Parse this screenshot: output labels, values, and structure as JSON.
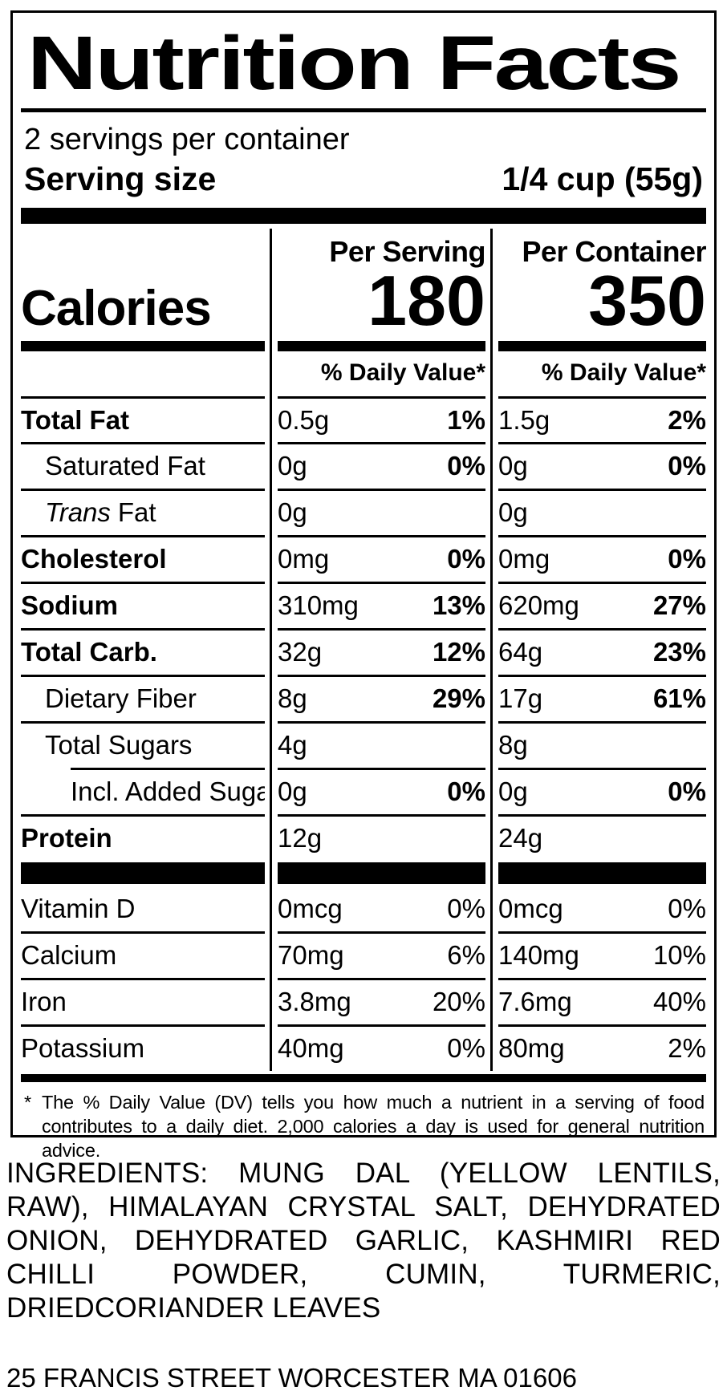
{
  "colors": {
    "ink": "#000000",
    "paper": "#ffffff"
  },
  "label": {
    "title": "Nutrition Facts",
    "servings_per_container": "2 servings per container",
    "serving_size": {
      "label": "Serving size",
      "value": "1/4 cup (55g)"
    },
    "columns": {
      "per_serving": "Per Serving",
      "per_container": "Per Container"
    },
    "calories": {
      "label": "Calories",
      "per_serving": "180",
      "per_container": "350"
    },
    "daily_value_header": "% Daily Value*",
    "nutrients": [
      {
        "name": "Total Fat",
        "ps_amt": "0.5g",
        "ps_dv": "1%",
        "pc_amt": "1.5g",
        "pc_dv": "2%"
      },
      {
        "name": "Saturated Fat",
        "ps_amt": "0g",
        "ps_dv": "0%",
        "pc_amt": "0g",
        "pc_dv": "0%"
      },
      {
        "name_italic": "Trans",
        "name": "Fat",
        "ps_amt": "0g",
        "pc_amt": "0g"
      },
      {
        "name": "Cholesterol",
        "ps_amt": "0mg",
        "ps_dv": "0%",
        "pc_amt": "0mg",
        "pc_dv": "0%"
      },
      {
        "name": "Sodium",
        "ps_amt": "310mg",
        "ps_dv": "13%",
        "pc_amt": "620mg",
        "pc_dv": "27%"
      },
      {
        "name": "Total Carb.",
        "ps_amt": "32g",
        "ps_dv": "12%",
        "pc_amt": "64g",
        "pc_dv": "23%"
      },
      {
        "name": "Dietary Fiber",
        "ps_amt": "8g",
        "ps_dv": "29%",
        "pc_amt": "17g",
        "pc_dv": "61%"
      },
      {
        "name": "Total Sugars",
        "ps_amt": "4g",
        "pc_amt": "8g"
      },
      {
        "name": "Incl. Added Sugars",
        "ps_amt": "0g",
        "ps_dv": "0%",
        "pc_amt": "0g",
        "pc_dv": "0%"
      },
      {
        "name": "Protein",
        "ps_amt": "12g",
        "pc_amt": "24g"
      }
    ],
    "micronutrients": [
      {
        "name": "Vitamin D",
        "ps_amt": "0mcg",
        "ps_dv": "0%",
        "pc_amt": "0mcg",
        "pc_dv": "0%"
      },
      {
        "name": "Calcium",
        "ps_amt": "70mg",
        "ps_dv": "6%",
        "pc_amt": "140mg",
        "pc_dv": "10%"
      },
      {
        "name": "Iron",
        "ps_amt": "3.8mg",
        "ps_dv": "20%",
        "pc_amt": "7.6mg",
        "pc_dv": "40%"
      },
      {
        "name": "Potassium",
        "ps_amt": "40mg",
        "ps_dv": "0%",
        "pc_amt": "80mg",
        "pc_dv": "2%"
      }
    ],
    "footnote": {
      "marker": "*",
      "text": "The % Daily Value (DV) tells you how much a nutrient in a serving of food contributes to a daily diet. 2,000 calories a day is used for general nutrition advice."
    }
  },
  "ingredients": {
    "text": "INGREDIENTS: MUNG DAL (YELLOW LENTILS, RAW), HIMALAYAN CRYSTAL SALT, DEHYDRATED ONION, DEHYDRATED GARLIC, KASHMIRI RED CHILLI POWDER, CUMIN, TURMERIC, DRIEDCORIANDER LEAVES"
  },
  "address": "25 FRANCIS STREET WORCESTER MA 01606"
}
